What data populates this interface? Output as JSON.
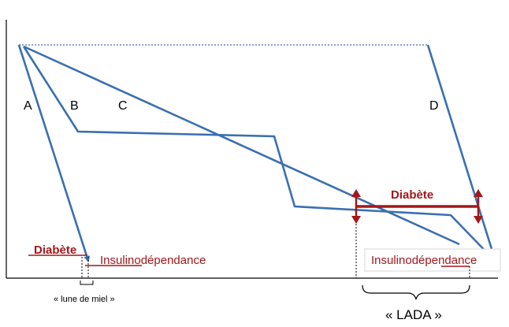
{
  "curve_labels": {
    "a": "A",
    "b": "B",
    "c": "C",
    "d": "D"
  },
  "left_annotation": {
    "diabetes": "Diabète",
    "insulin_dependence": "Insulinodépendance",
    "honeymoon": "« lune de miel »"
  },
  "right_annotation": {
    "diabetes": "Diabète",
    "insulin_dependence": "Insulinodépendance",
    "lada": "« LADA »"
  },
  "colors": {
    "curve": "#3a6fb0",
    "annotation_red": "#a3171b",
    "axis": "#000000"
  }
}
